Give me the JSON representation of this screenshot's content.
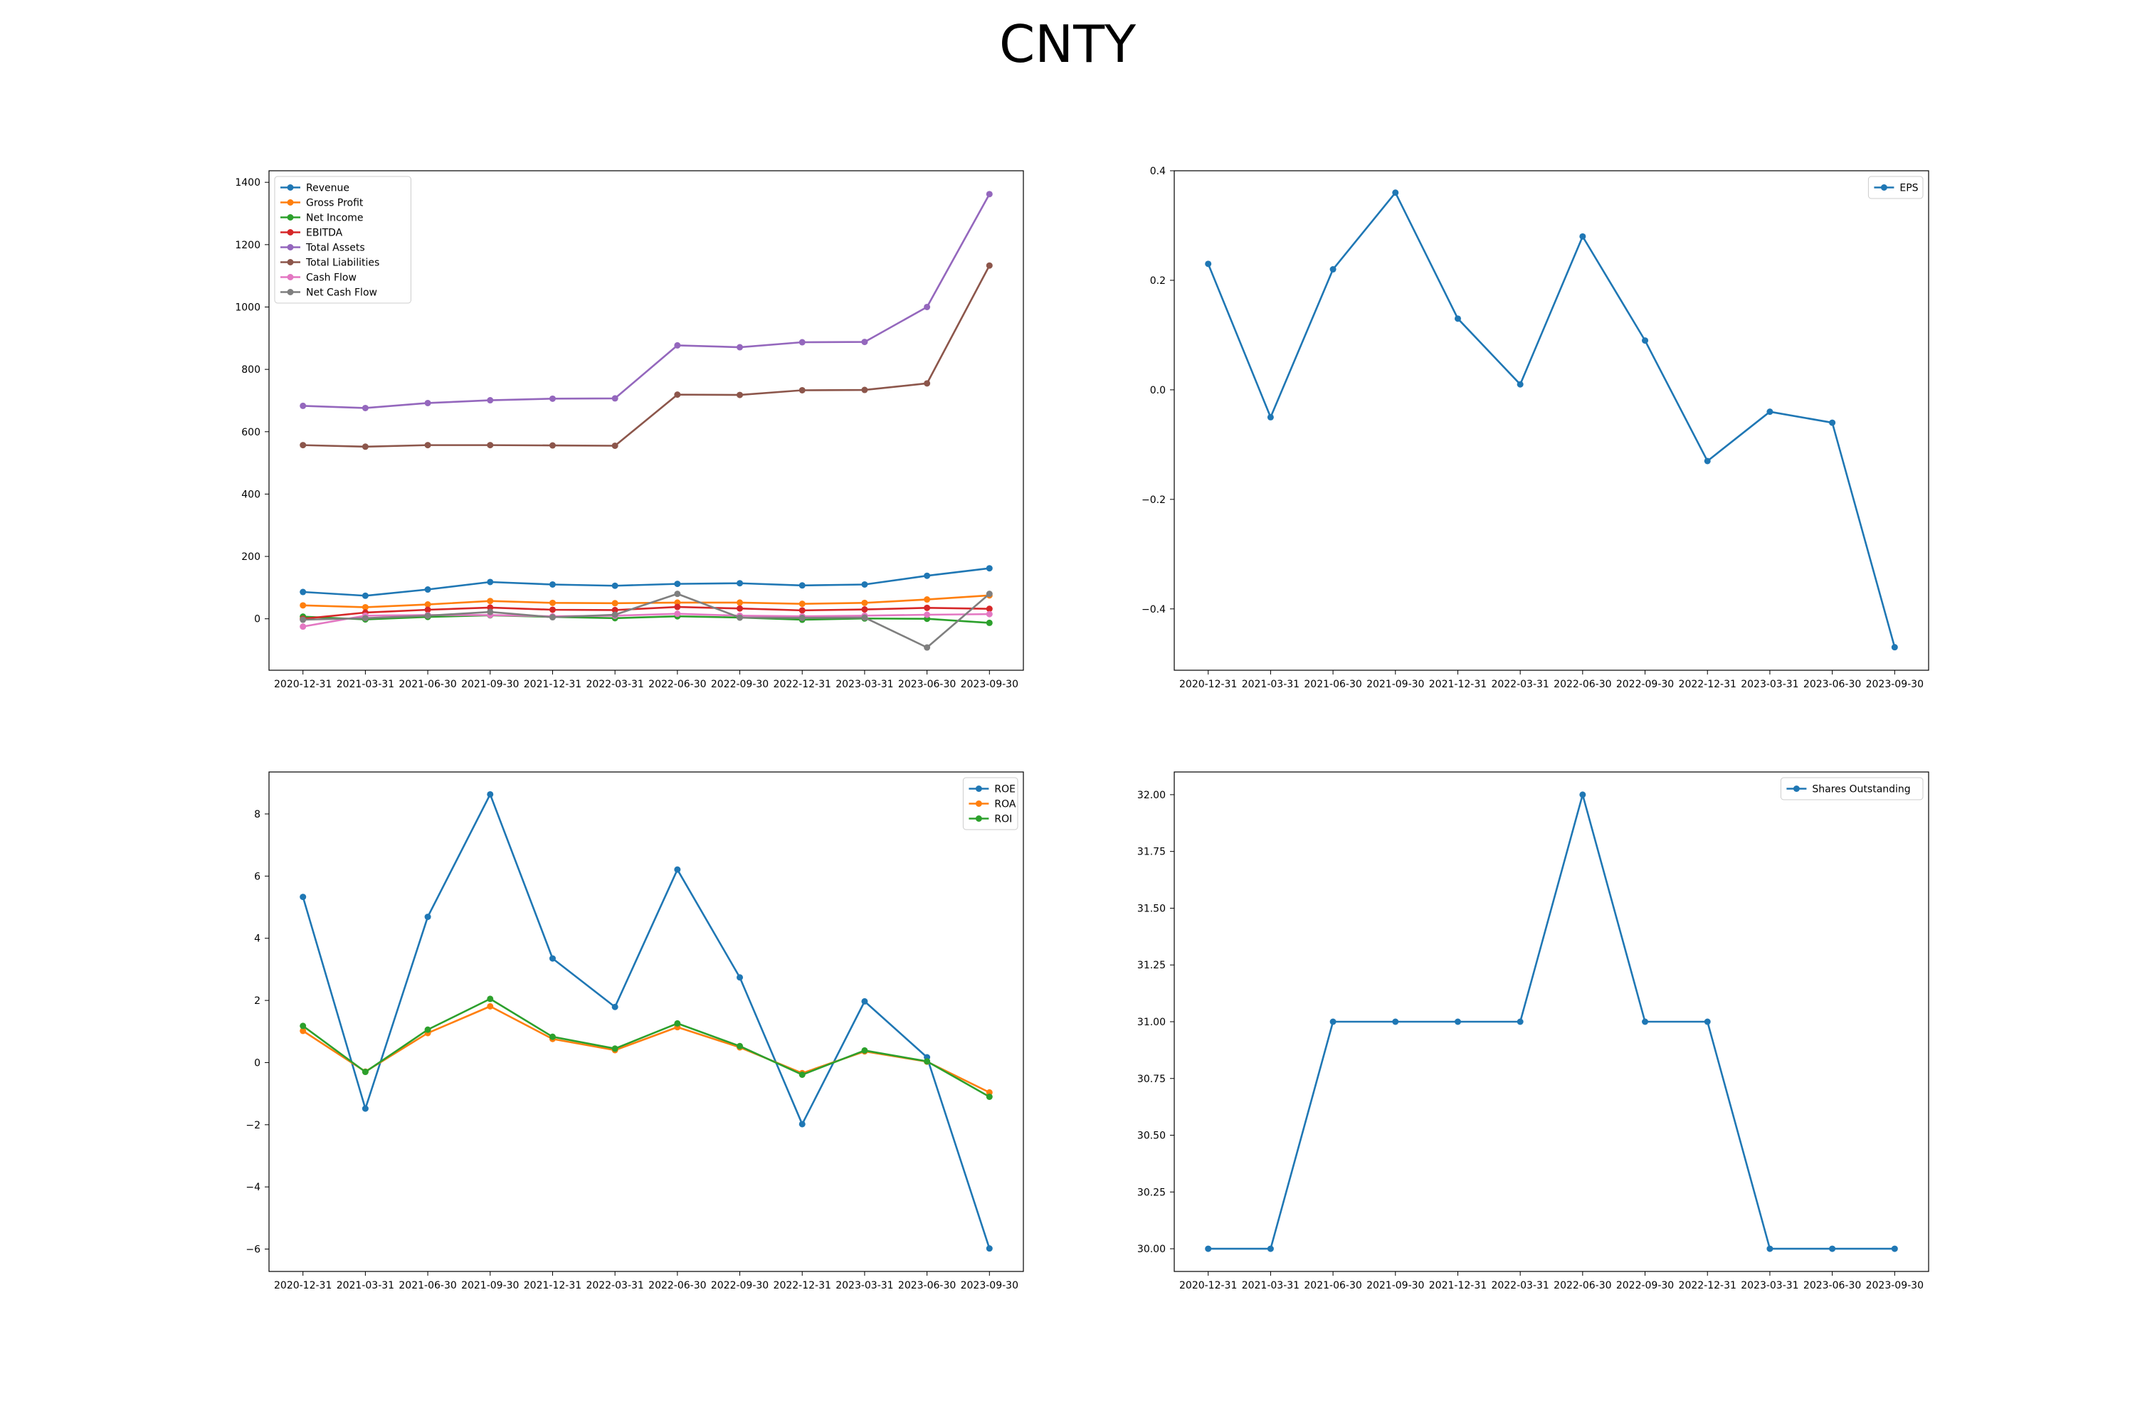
{
  "figure": {
    "title": "CNTY"
  },
  "chart_data": [
    {
      "type": "line",
      "title": "",
      "xlabel": "",
      "ylabel": "",
      "legend_position": "upper-left",
      "categories": [
        "2020-12-31",
        "2021-03-31",
        "2021-06-30",
        "2021-09-30",
        "2021-12-31",
        "2022-03-31",
        "2022-06-30",
        "2022-09-30",
        "2022-12-31",
        "2023-03-31",
        "2023-06-30",
        "2023-09-30"
      ],
      "ylim": [
        -165,
        1437
      ],
      "yticks": [
        0,
        200,
        400,
        600,
        800,
        1000,
        1200,
        1400
      ],
      "ytick_labels": [
        "0",
        "200",
        "400",
        "600",
        "800",
        "1000",
        "1200",
        "1400"
      ],
      "series": [
        {
          "name": "Revenue",
          "color": "#1f77b4",
          "values": [
            86,
            74,
            94,
            118,
            110,
            106,
            112,
            114,
            107,
            110,
            138,
            162
          ]
        },
        {
          "name": "Gross Profit",
          "color": "#ff7f0e",
          "values": [
            43,
            37,
            46,
            57,
            51,
            50,
            52,
            52,
            48,
            51,
            62,
            75
          ]
        },
        {
          "name": "Net Income",
          "color": "#2ca02c",
          "values": [
            7,
            -2,
            6,
            11,
            6,
            2,
            8,
            4,
            -3,
            1,
            0,
            -13
          ]
        },
        {
          "name": "EBITDA",
          "color": "#d62728",
          "values": [
            0,
            20,
            29,
            36,
            29,
            28,
            38,
            33,
            27,
            30,
            35,
            32
          ]
        },
        {
          "name": "Total Assets",
          "color": "#9467bd",
          "values": [
            683,
            676,
            692,
            701,
            706,
            707,
            877,
            871,
            887,
            888,
            1000,
            1362
          ]
        },
        {
          "name": "Total Liabilities",
          "color": "#8c564b",
          "values": [
            557,
            552,
            557,
            557,
            556,
            555,
            719,
            718,
            733,
            734,
            755,
            1133
          ]
        },
        {
          "name": "Cash Flow",
          "color": "#e377c2",
          "values": [
            -25,
            10,
            12,
            12,
            8,
            10,
            16,
            10,
            8,
            10,
            13,
            15
          ]
        },
        {
          "name": "Net Cash Flow",
          "color": "#7f7f7f",
          "values": [
            -3,
            2,
            10,
            22,
            5,
            13,
            80,
            4,
            3,
            4,
            -92,
            80
          ]
        }
      ]
    },
    {
      "type": "line",
      "title": "",
      "xlabel": "",
      "ylabel": "",
      "legend_position": "upper-right",
      "categories": [
        "2020-12-31",
        "2021-03-31",
        "2021-06-30",
        "2021-09-30",
        "2021-12-31",
        "2022-03-31",
        "2022-06-30",
        "2022-09-30",
        "2022-12-31",
        "2023-03-31",
        "2023-06-30",
        "2023-09-30"
      ],
      "ylim": [
        -0.512,
        0.4
      ],
      "yticks": [
        -0.4,
        -0.2,
        0.0,
        0.2,
        0.4
      ],
      "ytick_labels": [
        "−0.4",
        "−0.2",
        "0.0",
        "0.2",
        "0.4"
      ],
      "series": [
        {
          "name": "EPS",
          "color": "#1f77b4",
          "values": [
            0.23,
            -0.05,
            0.22,
            0.36,
            0.13,
            0.01,
            0.28,
            0.09,
            -0.13,
            -0.04,
            -0.06,
            -0.47
          ]
        }
      ]
    },
    {
      "type": "line",
      "title": "",
      "xlabel": "",
      "ylabel": "",
      "legend_position": "upper-right",
      "categories": [
        "2020-12-31",
        "2021-03-31",
        "2021-06-30",
        "2021-09-30",
        "2021-12-31",
        "2022-03-31",
        "2022-06-30",
        "2022-09-30",
        "2022-12-31",
        "2023-03-31",
        "2023-06-30",
        "2023-09-30"
      ],
      "ylim": [
        -6.72,
        9.35
      ],
      "yticks": [
        -6,
        -4,
        -2,
        0,
        2,
        4,
        6,
        8
      ],
      "ytick_labels": [
        "−6",
        "−4",
        "−2",
        "0",
        "2",
        "4",
        "6",
        "8"
      ],
      "series": [
        {
          "name": "ROE",
          "color": "#1f77b4",
          "values": [
            5.33,
            -1.48,
            4.69,
            8.63,
            3.35,
            1.79,
            6.21,
            2.74,
            -1.98,
            1.97,
            0.17,
            -5.98
          ]
        },
        {
          "name": "ROA",
          "color": "#ff7f0e",
          "values": [
            1.02,
            -0.29,
            0.95,
            1.81,
            0.76,
            0.4,
            1.14,
            0.49,
            -0.34,
            0.36,
            0.03,
            -0.96
          ]
        },
        {
          "name": "ROI",
          "color": "#2ca02c",
          "values": [
            1.18,
            -0.3,
            1.06,
            2.05,
            0.83,
            0.45,
            1.26,
            0.53,
            -0.39,
            0.39,
            0.04,
            -1.1
          ]
        }
      ]
    },
    {
      "type": "line",
      "title": "",
      "xlabel": "",
      "ylabel": "",
      "legend_position": "upper-right",
      "categories": [
        "2020-12-31",
        "2021-03-31",
        "2021-06-30",
        "2021-09-30",
        "2021-12-31",
        "2022-03-31",
        "2022-06-30",
        "2022-09-30",
        "2022-12-31",
        "2023-03-31",
        "2023-06-30",
        "2023-09-30"
      ],
      "ylim": [
        29.9,
        32.1
      ],
      "yticks": [
        30.0,
        30.25,
        30.5,
        30.75,
        31.0,
        31.25,
        31.5,
        31.75,
        32.0
      ],
      "ytick_labels": [
        "30.00",
        "30.25",
        "30.50",
        "30.75",
        "31.00",
        "31.25",
        "31.50",
        "31.75",
        "32.00"
      ],
      "series": [
        {
          "name": "Shares Outstanding",
          "color": "#1f77b4",
          "values": [
            30,
            30,
            31,
            31,
            31,
            31,
            32,
            31,
            31,
            30,
            30,
            30
          ]
        }
      ]
    }
  ]
}
